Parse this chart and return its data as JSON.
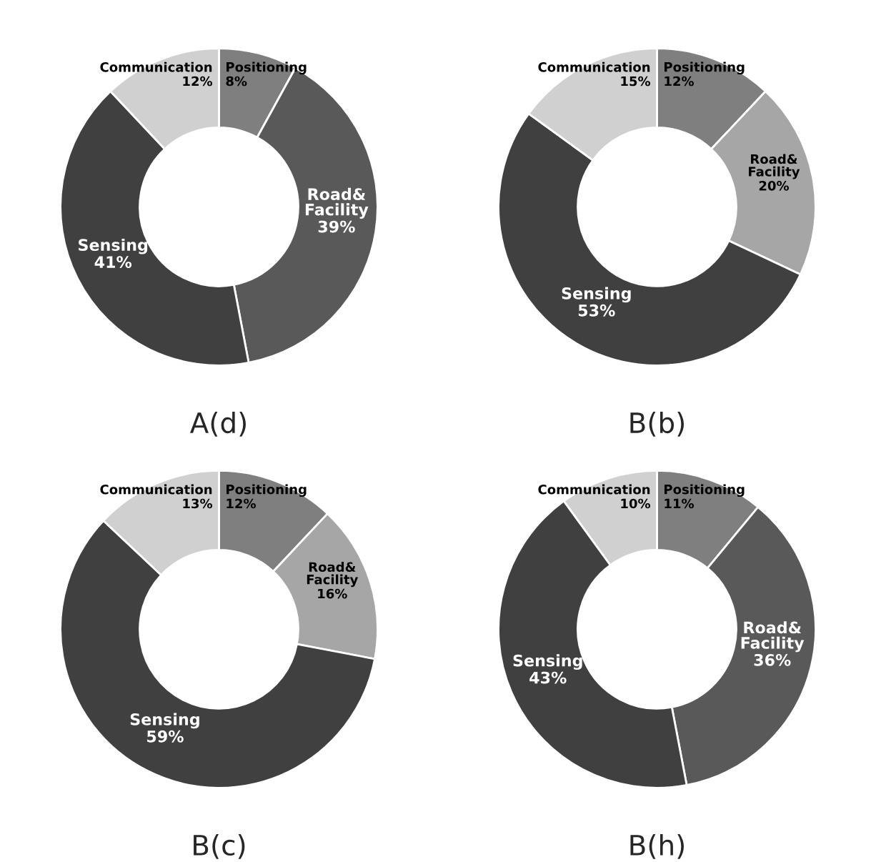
{
  "chart_data": [
    {
      "type": "donut",
      "title": "A(d)",
      "categories": [
        "Positioning",
        "Road&\nFacility",
        "Sensing",
        "Communication"
      ],
      "values": [
        8,
        39,
        41,
        12
      ],
      "value_labels": [
        "8%",
        "39%",
        "41%",
        "12%"
      ],
      "colors": [
        "#7f7f7f",
        "#595959",
        "#404040",
        "#d0d0d0"
      ]
    },
    {
      "type": "donut",
      "title": "B(b)",
      "categories": [
        "Positioning",
        "Road&\nFacility",
        "Sensing",
        "Communication"
      ],
      "values": [
        12,
        20,
        53,
        15
      ],
      "value_labels": [
        "12%",
        "20%",
        "53%",
        "15%"
      ],
      "colors": [
        "#7f7f7f",
        "#a6a6a6",
        "#404040",
        "#d0d0d0"
      ]
    },
    {
      "type": "donut",
      "title": "B(c)",
      "categories": [
        "Positioning",
        "Road&\nFacility",
        "Sensing",
        "Communication"
      ],
      "values": [
        12,
        16,
        59,
        13
      ],
      "value_labels": [
        "12%",
        "16%",
        "59%",
        "13%"
      ],
      "colors": [
        "#7f7f7f",
        "#a6a6a6",
        "#404040",
        "#d0d0d0"
      ]
    },
    {
      "type": "donut",
      "title": "B(h)",
      "categories": [
        "Positioning",
        "Road&\nFacility",
        "Sensing",
        "Communication"
      ],
      "values": [
        11,
        36,
        43,
        10
      ],
      "value_labels": [
        "11%",
        "36%",
        "43%",
        "10%"
      ],
      "colors": [
        "#7f7f7f",
        "#595959",
        "#404040",
        "#d0d0d0"
      ]
    }
  ]
}
